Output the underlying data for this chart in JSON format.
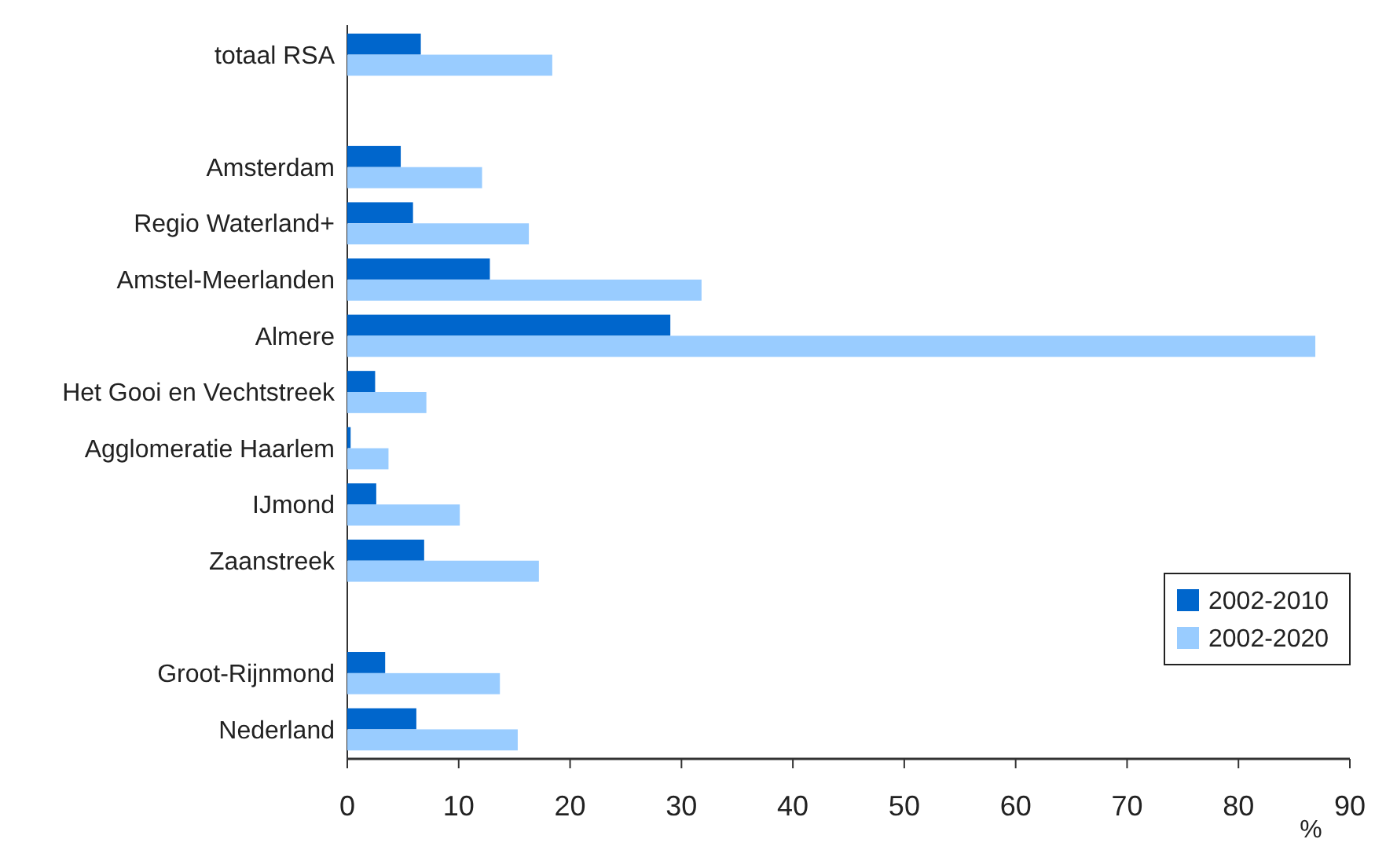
{
  "chart_data": {
    "type": "bar",
    "orientation": "horizontal",
    "xlabel": "%",
    "categories": [
      "totaal RSA",
      null,
      "Amsterdam",
      "Regio Waterland+",
      "Amstel-Meerlanden",
      "Almere",
      "Het Gooi en Vechtstreek",
      "Agglomeratie Haarlem",
      "IJmond",
      "Zaanstreek",
      null,
      "Groot-Rijnmond",
      "Nederland"
    ],
    "series": [
      {
        "name": "2002-2010",
        "color": "#0066cc",
        "values": [
          6.6,
          null,
          4.8,
          5.9,
          12.8,
          29.0,
          2.5,
          0.3,
          2.6,
          6.9,
          null,
          3.4,
          6.2
        ]
      },
      {
        "name": "2002-2020",
        "color": "#99ccff",
        "values": [
          18.4,
          null,
          12.1,
          16.3,
          31.8,
          86.9,
          7.1,
          3.7,
          10.1,
          17.2,
          null,
          13.7,
          15.3
        ]
      }
    ],
    "xlim": [
      0,
      90
    ],
    "xticks": [
      0,
      10,
      20,
      30,
      40,
      50,
      60,
      70,
      80,
      90
    ],
    "legend": "bottom right",
    "grid": false
  }
}
